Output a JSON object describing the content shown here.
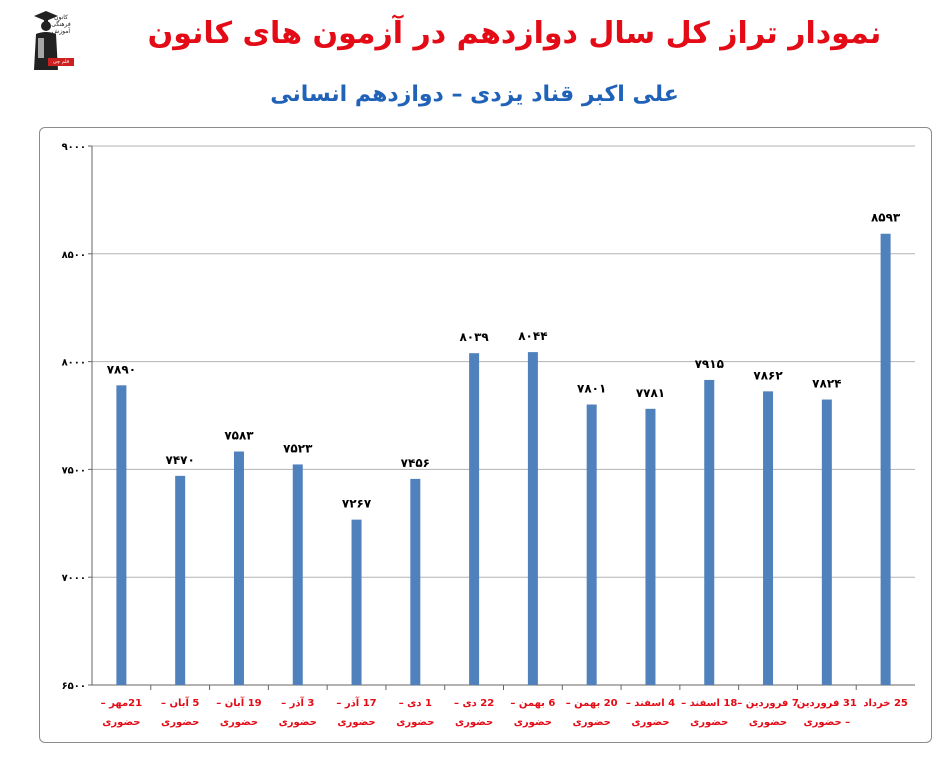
{
  "header": {
    "title": "نمودار تراز کل سال دوازدهم در آزمون های کانون",
    "subtitle": "علی اکبر قناد یزدی – دوازدهم انسانی",
    "logo_text": "کانون فرهنگی آموزش",
    "logo_badge": "قلم چی"
  },
  "colors": {
    "title": "#e30b16",
    "subtitle": "#1f62b8",
    "bar": "#4f81bd",
    "grid": "#b3b3b3",
    "category_text": "#e30b16"
  },
  "chart_data": {
    "type": "bar",
    "title": "نمودار تراز کل سال دوازدهم در آزمون های کانون",
    "subtitle": "علی اکبر قناد یزدی – دوازدهم انسانی",
    "xlabel": "",
    "ylabel": "",
    "ylim": [
      6500,
      9000
    ],
    "y_ticks": [
      6500,
      7000,
      7500,
      8000,
      8500,
      9000
    ],
    "y_tick_labels": [
      "۶۵۰۰",
      "۷۰۰۰",
      "۷۵۰۰",
      "۸۰۰۰",
      "۸۵۰۰",
      "۹۰۰۰"
    ],
    "grid": true,
    "categories": [
      [
        "21مهر –",
        "حضوری"
      ],
      [
        "5 آبان –",
        "حضوری"
      ],
      [
        "19 آبان –",
        "حضوری"
      ],
      [
        "3 آذر –",
        "حضوری"
      ],
      [
        "17 آذر –",
        "حضوری"
      ],
      [
        "1 دی –",
        "حضوری"
      ],
      [
        "22 دی –",
        "حضوری"
      ],
      [
        "6 بهمن –",
        "حضوری"
      ],
      [
        "20 بهمن –",
        "حضوری"
      ],
      [
        "4 اسفند –",
        "حضوری"
      ],
      [
        "18 اسفند –",
        "حضوری"
      ],
      [
        "7 فروردین –",
        "حضوری"
      ],
      [
        "31 فروردین",
        "– حضوری"
      ],
      [
        "25 خرداد",
        ""
      ]
    ],
    "values": [
      7890,
      7470,
      7583,
      7523,
      7267,
      7456,
      8039,
      8044,
      7801,
      7781,
      7915,
      7862,
      7824,
      8593
    ],
    "value_labels": [
      "۷۸۹۰",
      "۷۴۷۰",
      "۷۵۸۳",
      "۷۵۲۳",
      "۷۲۶۷",
      "۷۴۵۶",
      "۸۰۳۹",
      "۸۰۴۴",
      "۷۸۰۱",
      "۷۷۸۱",
      "۷۹۱۵",
      "۷۸۶۲",
      "۷۸۲۴",
      "۸۵۹۳"
    ]
  }
}
